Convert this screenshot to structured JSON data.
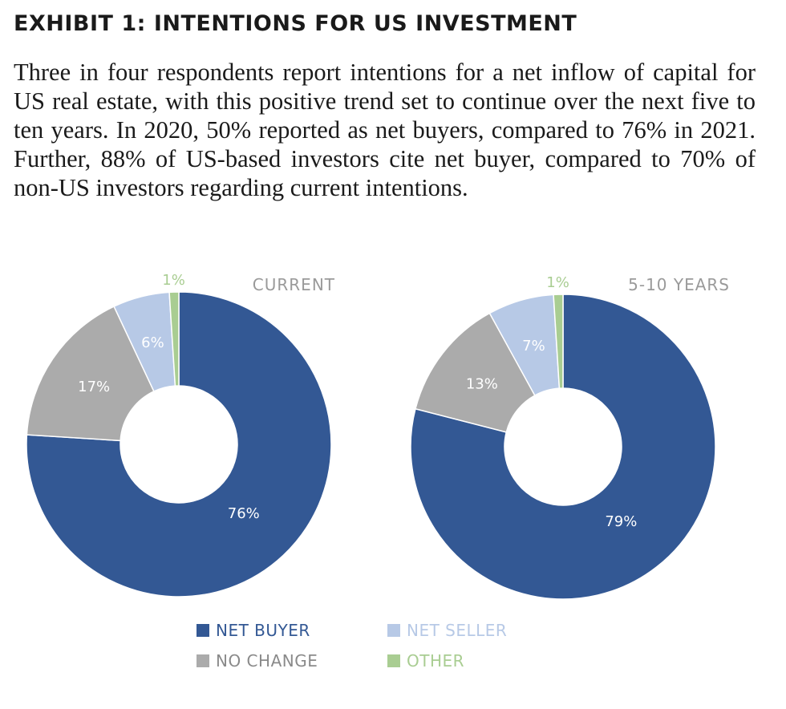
{
  "title": "EXHIBIT 1: INTENTIONS FOR US INVESTMENT",
  "body_text": "Three in four respondents report intentions for a net inflow of capital for US real estate, with this positive trend set to continue over the next five to ten years. In 2020, 50% reported as net buyers, compared to 76% in 2021. Further, 88% of US-based investors cite net buyer, compared to 70% of non-US investors regarding current intentions.",
  "colors": {
    "net_buyer": "#335894",
    "net_seller": "#b7c9e6",
    "no_change": "#ababab",
    "other": "#a9cd92"
  },
  "legend": [
    {
      "key": "net_buyer",
      "label": "NET BUYER"
    },
    {
      "key": "net_seller",
      "label": "NET SELLER"
    },
    {
      "key": "no_change",
      "label": "NO CHANGE"
    },
    {
      "key": "other",
      "label": "OTHER"
    }
  ],
  "chart_data": [
    {
      "type": "pie",
      "title": "CURRENT",
      "slices": [
        {
          "key": "net_buyer",
          "value": 76,
          "label": "76%"
        },
        {
          "key": "no_change",
          "value": 17,
          "label": "17%"
        },
        {
          "key": "net_seller",
          "value": 6,
          "label": "6%"
        },
        {
          "key": "other",
          "value": 1,
          "label": "1%"
        }
      ]
    },
    {
      "type": "pie",
      "title": "5-10 YEARS",
      "slices": [
        {
          "key": "net_buyer",
          "value": 79,
          "label": "79%"
        },
        {
          "key": "no_change",
          "value": 13,
          "label": "13%"
        },
        {
          "key": "net_seller",
          "value": 7,
          "label": "7%"
        },
        {
          "key": "other",
          "value": 1,
          "label": "1%"
        }
      ]
    }
  ]
}
